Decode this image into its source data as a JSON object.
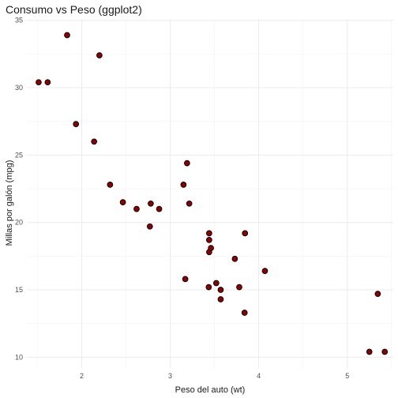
{
  "chart_data": {
    "type": "scatter",
    "title": "Consumo vs Peso (ggplot2)",
    "xlabel": "Peso del auto (wt)",
    "ylabel": "Millas por galón (mpg)",
    "xlim": [
      1.38,
      5.52
    ],
    "ylim": [
      9.2,
      35.1
    ],
    "x_ticks": [
      2,
      3,
      4,
      5
    ],
    "x_tick_labels": [
      "2",
      "3",
      "4",
      "5"
    ],
    "y_ticks": [
      10,
      15,
      20,
      25,
      30,
      35
    ],
    "y_tick_labels": [
      "10",
      "15",
      "20",
      "25",
      "30",
      "35"
    ],
    "grid": true,
    "point_fill": "#8b0000",
    "point_stroke": "#000000",
    "points": [
      {
        "x": 1.513,
        "y": 30.4
      },
      {
        "x": 1.615,
        "y": 30.4
      },
      {
        "x": 1.835,
        "y": 33.9
      },
      {
        "x": 1.935,
        "y": 27.3
      },
      {
        "x": 2.14,
        "y": 26.0
      },
      {
        "x": 2.2,
        "y": 32.4
      },
      {
        "x": 2.32,
        "y": 22.8
      },
      {
        "x": 2.465,
        "y": 21.5
      },
      {
        "x": 2.62,
        "y": 21.0
      },
      {
        "x": 2.77,
        "y": 19.7
      },
      {
        "x": 2.78,
        "y": 21.4
      },
      {
        "x": 2.875,
        "y": 21.0
      },
      {
        "x": 3.15,
        "y": 22.8
      },
      {
        "x": 3.17,
        "y": 15.8
      },
      {
        "x": 3.19,
        "y": 24.4
      },
      {
        "x": 3.215,
        "y": 21.4
      },
      {
        "x": 3.435,
        "y": 15.2
      },
      {
        "x": 3.44,
        "y": 18.7
      },
      {
        "x": 3.44,
        "y": 19.2
      },
      {
        "x": 3.44,
        "y": 17.8
      },
      {
        "x": 3.46,
        "y": 18.1
      },
      {
        "x": 3.52,
        "y": 15.5
      },
      {
        "x": 3.57,
        "y": 14.3
      },
      {
        "x": 3.57,
        "y": 15.0
      },
      {
        "x": 3.73,
        "y": 17.3
      },
      {
        "x": 3.78,
        "y": 15.2
      },
      {
        "x": 3.84,
        "y": 13.3
      },
      {
        "x": 3.845,
        "y": 19.2
      },
      {
        "x": 4.07,
        "y": 16.4
      },
      {
        "x": 5.25,
        "y": 10.4
      },
      {
        "x": 5.345,
        "y": 14.7
      },
      {
        "x": 5.424,
        "y": 10.4
      }
    ]
  }
}
